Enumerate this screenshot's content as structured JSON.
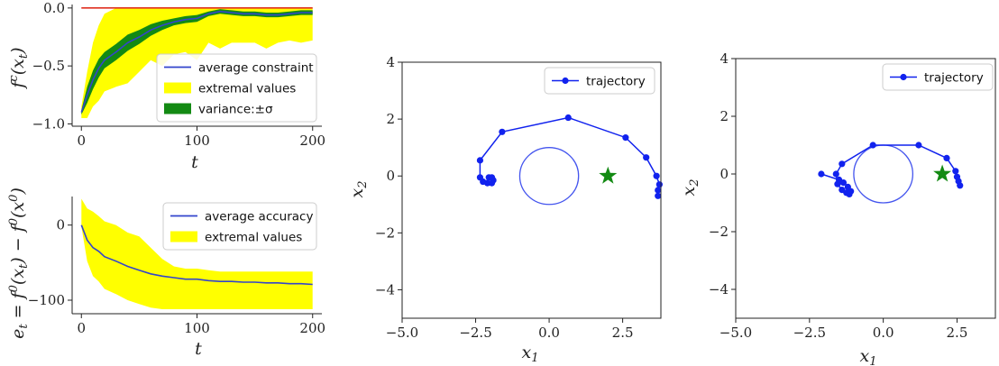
{
  "chart_data": [
    {
      "type": "line",
      "xlabel": "t",
      "ylabel": "f^c(x_t)",
      "xlim": [
        -8,
        208
      ],
      "ylim": [
        -1.02,
        0.03
      ],
      "xticks": [
        0,
        100,
        200
      ],
      "xticklabels": [
        "0",
        "100",
        "200"
      ],
      "yticks": [
        0.0,
        -0.5,
        -1.0
      ],
      "yticklabels": [
        "0.0",
        "−0.5",
        "−1.0"
      ],
      "reference_line": {
        "y": 0.0,
        "color": "#e03020"
      },
      "series": [
        {
          "name": "average constraint",
          "color": "#3344cc",
          "x": [
            0,
            5,
            10,
            15,
            20,
            30,
            40,
            50,
            60,
            70,
            80,
            90,
            100,
            110,
            120,
            130,
            140,
            150,
            160,
            170,
            180,
            190,
            200
          ],
          "y": [
            -0.9,
            -0.75,
            -0.62,
            -0.52,
            -0.45,
            -0.38,
            -0.3,
            -0.25,
            -0.19,
            -0.15,
            -0.12,
            -0.1,
            -0.09,
            -0.05,
            -0.03,
            -0.04,
            -0.05,
            -0.05,
            -0.06,
            -0.06,
            -0.05,
            -0.04,
            -0.04
          ]
        }
      ],
      "bands": [
        {
          "name": "extremal values",
          "color": "#ffff00",
          "x": [
            0,
            5,
            10,
            15,
            20,
            30,
            40,
            50,
            60,
            70,
            80,
            90,
            100,
            110,
            120,
            130,
            140,
            150,
            160,
            170,
            180,
            190,
            200
          ],
          "low": [
            -0.95,
            -0.95,
            -0.85,
            -0.8,
            -0.72,
            -0.68,
            -0.65,
            -0.55,
            -0.45,
            -0.5,
            -0.4,
            -0.38,
            -0.45,
            -0.3,
            -0.35,
            -0.3,
            -0.3,
            -0.3,
            -0.35,
            -0.3,
            -0.28,
            -0.3,
            -0.28
          ],
          "high": [
            -0.85,
            -0.55,
            -0.3,
            -0.15,
            -0.05,
            0.0,
            0.0,
            0.0,
            0.0,
            0.0,
            0.0,
            0.0,
            0.0,
            0.0,
            0.0,
            0.0,
            0.0,
            0.0,
            0.0,
            0.0,
            0.0,
            0.0,
            0.0
          ]
        },
        {
          "name": "variance:±σ",
          "color": "#138a13",
          "x": [
            0,
            5,
            10,
            15,
            20,
            30,
            40,
            50,
            60,
            70,
            80,
            90,
            100,
            110,
            120,
            130,
            140,
            150,
            160,
            170,
            180,
            190,
            200
          ],
          "low": [
            -0.92,
            -0.82,
            -0.7,
            -0.6,
            -0.52,
            -0.45,
            -0.37,
            -0.31,
            -0.24,
            -0.19,
            -0.15,
            -0.13,
            -0.12,
            -0.07,
            -0.05,
            -0.06,
            -0.07,
            -0.07,
            -0.08,
            -0.08,
            -0.07,
            -0.06,
            -0.06
          ],
          "high": [
            -0.88,
            -0.68,
            -0.54,
            -0.44,
            -0.38,
            -0.31,
            -0.23,
            -0.19,
            -0.14,
            -0.11,
            -0.09,
            -0.07,
            -0.06,
            -0.03,
            -0.01,
            -0.02,
            -0.03,
            -0.03,
            -0.04,
            -0.04,
            -0.03,
            -0.02,
            -0.02
          ]
        }
      ],
      "legend": "lower right"
    },
    {
      "type": "line",
      "xlabel": "t",
      "ylabel": "e_t = f^0(x_t) − f^0(x^0)",
      "xlim": [
        -8,
        208
      ],
      "ylim": [
        -118,
        38
      ],
      "xticks": [
        0,
        100,
        200
      ],
      "xticklabels": [
        "0",
        "100",
        "200"
      ],
      "yticks": [
        0,
        -100
      ],
      "yticklabels": [
        "0",
        "−100"
      ],
      "series": [
        {
          "name": "average accuracy",
          "color": "#3344cc",
          "x": [
            0,
            5,
            10,
            15,
            20,
            30,
            40,
            50,
            60,
            70,
            80,
            90,
            100,
            110,
            120,
            130,
            140,
            150,
            160,
            170,
            180,
            190,
            200
          ],
          "y": [
            0,
            -20,
            -30,
            -35,
            -42,
            -48,
            -55,
            -60,
            -65,
            -68,
            -70,
            -72,
            -72,
            -74,
            -75,
            -75,
            -76,
            -76,
            -77,
            -77,
            -78,
            -78,
            -79
          ]
        }
      ],
      "bands": [
        {
          "name": "extremal values",
          "color": "#ffff00",
          "x": [
            0,
            5,
            10,
            15,
            20,
            30,
            40,
            50,
            60,
            70,
            80,
            90,
            100,
            110,
            120,
            130,
            140,
            150,
            160,
            170,
            180,
            190,
            200
          ],
          "low": [
            -2,
            -48,
            -68,
            -75,
            -85,
            -92,
            -100,
            -105,
            -110,
            -112,
            -112,
            -112,
            -112,
            -112,
            -112,
            -112,
            -112,
            -112,
            -112,
            -112,
            -112,
            -112,
            -112
          ],
          "high": [
            35,
            22,
            18,
            12,
            5,
            0,
            -10,
            -15,
            -30,
            -45,
            -55,
            -58,
            -58,
            -60,
            -62,
            -62,
            -62,
            -62,
            -62,
            -62,
            -62,
            -62,
            -62
          ]
        }
      ],
      "legend": "upper right"
    },
    {
      "type": "scatter",
      "xlabel": "x_1",
      "ylabel": "x_2",
      "xlim": [
        -5.0,
        3.8
      ],
      "ylim": [
        -5.0,
        4.0
      ],
      "xticks": [
        -5.0,
        -2.5,
        0.0,
        2.5
      ],
      "xticklabels": [
        "−5.0",
        "−2.5",
        "0.0",
        "2.5"
      ],
      "yticks": [
        4,
        2,
        0,
        -2,
        -4
      ],
      "yticklabels": [
        "4",
        "2",
        "0",
        "−2",
        "−4"
      ],
      "circle": {
        "cx": 0,
        "cy": 0,
        "r": 1.0,
        "color": "#4455ee"
      },
      "goal": {
        "x": 2.0,
        "y": 0.0,
        "color": "#138a13"
      },
      "series": [
        {
          "name": "trajectory",
          "color": "#1122ee",
          "points": [
            [
              3.7,
              -0.7
            ],
            [
              3.7,
              -0.5
            ],
            [
              3.75,
              -0.3
            ],
            [
              3.65,
              0.0
            ],
            [
              3.3,
              0.65
            ],
            [
              2.6,
              1.35
            ],
            [
              0.65,
              2.05
            ],
            [
              -1.6,
              1.55
            ],
            [
              -2.35,
              0.55
            ],
            [
              -2.35,
              -0.05
            ],
            [
              -2.25,
              -0.2
            ],
            [
              -2.1,
              -0.25
            ],
            [
              -1.95,
              -0.25
            ],
            [
              -1.9,
              -0.15
            ],
            [
              -1.95,
              -0.05
            ],
            [
              -2.05,
              -0.05
            ]
          ]
        }
      ],
      "legend": "upper right"
    },
    {
      "type": "scatter",
      "xlabel": "x_1",
      "ylabel": "x_2",
      "xlim": [
        -5.0,
        3.8
      ],
      "ylim": [
        -5.0,
        4.0
      ],
      "xticks": [
        -5.0,
        -2.5,
        0.0,
        2.5
      ],
      "xticklabels": [
        "−5.0",
        "−2.5",
        "0.0",
        "2.5"
      ],
      "yticks": [
        4,
        2,
        0,
        -2,
        -4
      ],
      "yticklabels": [
        "4",
        "2",
        "0",
        "−2",
        "−4"
      ],
      "circle": {
        "cx": 0,
        "cy": 0,
        "r": 1.0,
        "color": "#4455ee"
      },
      "goal": {
        "x": 2.0,
        "y": 0.0,
        "color": "#138a13"
      },
      "series": [
        {
          "name": "trajectory",
          "color": "#1122ee",
          "points": [
            [
              2.6,
              -0.4
            ],
            [
              2.55,
              -0.25
            ],
            [
              2.5,
              -0.1
            ],
            [
              2.45,
              0.1
            ],
            [
              2.15,
              0.55
            ],
            [
              1.2,
              1.0
            ],
            [
              -0.35,
              1.0
            ],
            [
              -1.4,
              0.35
            ],
            [
              -1.6,
              0.0
            ],
            [
              -1.55,
              -0.35
            ],
            [
              -1.4,
              -0.55
            ],
            [
              -1.25,
              -0.65
            ],
            [
              -1.15,
              -0.7
            ],
            [
              -1.1,
              -0.6
            ],
            [
              -1.2,
              -0.45
            ],
            [
              -1.35,
              -0.3
            ],
            [
              -1.5,
              -0.2
            ],
            [
              -2.1,
              0.0
            ]
          ]
        }
      ],
      "legend": "upper right"
    }
  ]
}
